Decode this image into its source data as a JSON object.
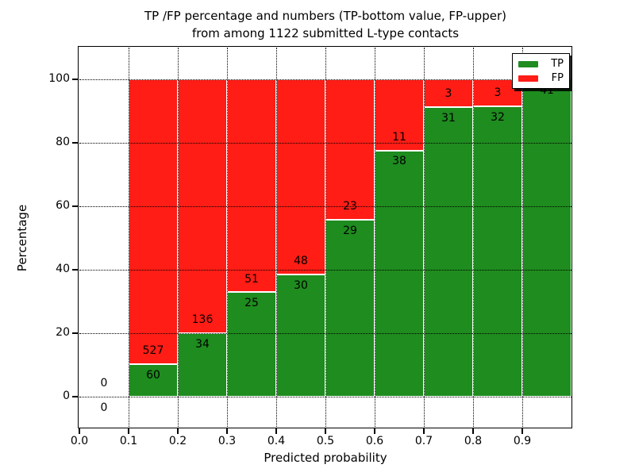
{
  "chart_data": {
    "type": "bar",
    "stacked": true,
    "title_lines": [
      "TP /FP percentage and numbers (TP-bottom value, FP-upper)",
      "from among 1122 submitted L-type contacts"
    ],
    "xlabel": "Predicted probability",
    "ylabel": "Percentage",
    "xlim": [
      0.0,
      1.0
    ],
    "ylim": [
      -10,
      110
    ],
    "x_tick_labels": [
      "0.0",
      "0.1",
      "0.2",
      "0.3",
      "0.4",
      "0.5",
      "0.6",
      "0.7",
      "0.8",
      "0.9"
    ],
    "y_tick_values": [
      0,
      20,
      40,
      60,
      80,
      100
    ],
    "grid": true,
    "total_submitted": 1122,
    "colors": {
      "tp": "#1e8c1e",
      "fp": "#ff1d16",
      "grid": "#000000",
      "background": "#ffffff"
    },
    "legend": {
      "position": "upper right",
      "entries": [
        {
          "label": "TP",
          "color": "#1e8c1e"
        },
        {
          "label": "FP",
          "color": "#ff1d16"
        }
      ]
    },
    "bins": [
      {
        "range": [
          0.0,
          0.1
        ],
        "tp_count": 0,
        "fp_count": 0,
        "tp_label": "0",
        "fp_label": "0"
      },
      {
        "range": [
          0.1,
          0.2
        ],
        "tp_count": 60,
        "fp_count": 527,
        "tp_label": "60",
        "fp_label": "527"
      },
      {
        "range": [
          0.2,
          0.3
        ],
        "tp_count": 34,
        "fp_count": 136,
        "tp_label": "34",
        "fp_label": "136"
      },
      {
        "range": [
          0.3,
          0.4
        ],
        "tp_count": 25,
        "fp_count": 51,
        "tp_label": "25",
        "fp_label": "51"
      },
      {
        "range": [
          0.4,
          0.5
        ],
        "tp_count": 30,
        "fp_count": 48,
        "tp_label": "30",
        "fp_label": "48"
      },
      {
        "range": [
          0.5,
          0.6
        ],
        "tp_count": 29,
        "fp_count": 23,
        "tp_label": "29",
        "fp_label": "23"
      },
      {
        "range": [
          0.6,
          0.7
        ],
        "tp_count": 38,
        "fp_count": 11,
        "tp_label": "38",
        "fp_label": "11"
      },
      {
        "range": [
          0.7,
          0.8
        ],
        "tp_count": 31,
        "fp_count": 3,
        "tp_label": "31",
        "fp_label": "3"
      },
      {
        "range": [
          0.8,
          0.9
        ],
        "tp_count": 32,
        "fp_count": 3,
        "tp_label": "32",
        "fp_label": "3"
      },
      {
        "range": [
          0.9,
          1.0
        ],
        "tp_count": 41,
        "fp_count": 0,
        "tp_label": "41",
        "fp_label": null
      }
    ]
  }
}
